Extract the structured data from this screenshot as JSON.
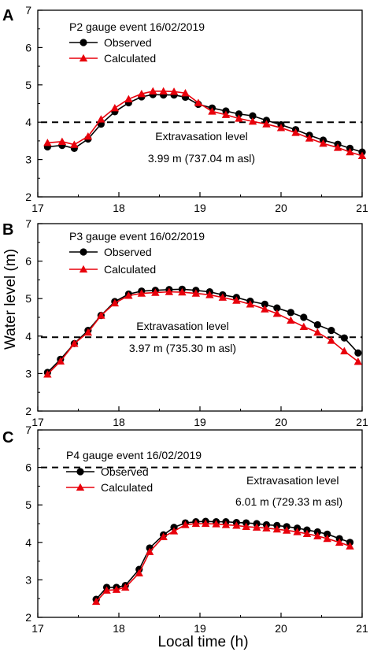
{
  "figure": {
    "ylabel": "Water level (m)",
    "xlabel": "Local time (h)"
  },
  "chart_data": [
    {
      "panel_label": "A",
      "type": "line",
      "title": "P2 gauge event 16/02/2019",
      "xlim": [
        17,
        21
      ],
      "ylim": [
        2,
        7
      ],
      "xticks": [
        "17",
        "18",
        "19",
        "20",
        "21"
      ],
      "yticks": [
        "2",
        "3",
        "4",
        "5",
        "6",
        "7"
      ],
      "threshold": {
        "value": 4.0,
        "label": "Extravasation level",
        "sublabel": "3.99 m (737.04 m asl)"
      },
      "series": [
        {
          "name": "Observed",
          "color": "#000000",
          "marker": "circle",
          "x": [
            17.12,
            17.3,
            17.45,
            17.62,
            17.78,
            17.95,
            18.12,
            18.28,
            18.42,
            18.55,
            18.68,
            18.82,
            18.98,
            19.15,
            19.32,
            19.48,
            19.65,
            19.82,
            20.0,
            20.18,
            20.35,
            20.52,
            20.7,
            20.85,
            21.0
          ],
          "y": [
            3.34,
            3.38,
            3.3,
            3.55,
            3.95,
            4.28,
            4.52,
            4.68,
            4.74,
            4.73,
            4.73,
            4.67,
            4.48,
            4.38,
            4.3,
            4.22,
            4.17,
            4.05,
            3.93,
            3.8,
            3.65,
            3.52,
            3.41,
            3.3,
            3.2
          ]
        },
        {
          "name": "Calculated",
          "color": "#e8000b",
          "marker": "triangle",
          "x": [
            17.12,
            17.3,
            17.45,
            17.62,
            17.78,
            17.95,
            18.12,
            18.28,
            18.42,
            18.55,
            18.68,
            18.82,
            18.98,
            19.15,
            19.32,
            19.48,
            19.65,
            19.82,
            20.0,
            20.18,
            20.35,
            20.52,
            20.7,
            20.85,
            21.0
          ],
          "y": [
            3.45,
            3.48,
            3.4,
            3.62,
            4.08,
            4.38,
            4.62,
            4.76,
            4.83,
            4.83,
            4.82,
            4.78,
            4.52,
            4.29,
            4.2,
            4.1,
            4.02,
            3.95,
            3.85,
            3.72,
            3.57,
            3.43,
            3.32,
            3.2,
            3.1
          ]
        }
      ]
    },
    {
      "panel_label": "B",
      "type": "line",
      "title": "P3 gauge event 16/02/2019",
      "xlim": [
        17,
        21
      ],
      "ylim": [
        2,
        7
      ],
      "xticks": [
        "17",
        "18",
        "19",
        "20",
        "21"
      ],
      "yticks": [
        "2",
        "3",
        "4",
        "5",
        "6",
        "7"
      ],
      "threshold": {
        "value": 3.97,
        "label": "Extravasation level",
        "sublabel": "3.97 m (735.30 m asl)"
      },
      "series": [
        {
          "name": "Observed",
          "color": "#000000",
          "marker": "circle",
          "x": [
            17.12,
            17.28,
            17.45,
            17.62,
            17.78,
            17.95,
            18.12,
            18.28,
            18.45,
            18.62,
            18.78,
            18.95,
            19.12,
            19.28,
            19.45,
            19.62,
            19.8,
            19.95,
            20.12,
            20.28,
            20.45,
            20.62,
            20.78,
            20.95
          ],
          "y": [
            3.03,
            3.38,
            3.8,
            4.15,
            4.55,
            4.92,
            5.12,
            5.2,
            5.22,
            5.24,
            5.25,
            5.22,
            5.18,
            5.1,
            5.03,
            4.93,
            4.85,
            4.75,
            4.63,
            4.5,
            4.3,
            4.15,
            3.95,
            3.55
          ]
        },
        {
          "name": "Calculated",
          "color": "#e8000b",
          "marker": "triangle",
          "x": [
            17.12,
            17.28,
            17.45,
            17.62,
            17.78,
            17.95,
            18.12,
            18.28,
            18.45,
            18.62,
            18.78,
            18.95,
            19.12,
            19.28,
            19.45,
            19.62,
            19.8,
            19.95,
            20.12,
            20.28,
            20.45,
            20.62,
            20.78,
            20.95
          ],
          "y": [
            2.98,
            3.33,
            3.8,
            4.1,
            4.55,
            4.88,
            5.08,
            5.14,
            5.16,
            5.18,
            5.17,
            5.14,
            5.1,
            5.03,
            4.95,
            4.85,
            4.72,
            4.6,
            4.42,
            4.25,
            4.1,
            3.88,
            3.6,
            3.32
          ]
        }
      ]
    },
    {
      "panel_label": "C",
      "type": "line",
      "title": "P4 gauge event 16/02/2019",
      "xlim": [
        17,
        21
      ],
      "ylim": [
        2,
        7
      ],
      "xticks": [
        "17",
        "18",
        "19",
        "20",
        "21"
      ],
      "yticks": [
        "2",
        "3",
        "4",
        "5",
        "6",
        "7"
      ],
      "threshold": {
        "value": 6.0,
        "label": "Extravasation level",
        "sublabel": "6.01 m (729.33 m asl)"
      },
      "series": [
        {
          "name": "Observed",
          "color": "#000000",
          "marker": "circle",
          "x": [
            17.72,
            17.85,
            17.97,
            18.08,
            18.25,
            18.38,
            18.55,
            18.68,
            18.82,
            18.95,
            19.07,
            19.2,
            19.32,
            19.45,
            19.57,
            19.7,
            19.82,
            19.95,
            20.07,
            20.2,
            20.32,
            20.45,
            20.57,
            20.72,
            20.85
          ],
          "y": [
            2.48,
            2.8,
            2.8,
            2.85,
            3.28,
            3.85,
            4.2,
            4.4,
            4.52,
            4.55,
            4.56,
            4.55,
            4.55,
            4.53,
            4.52,
            4.5,
            4.47,
            4.45,
            4.42,
            4.38,
            4.33,
            4.28,
            4.22,
            4.1,
            4.0
          ]
        },
        {
          "name": "Calculated",
          "color": "#e8000b",
          "marker": "triangle",
          "x": [
            17.72,
            17.85,
            17.97,
            18.08,
            18.25,
            18.38,
            18.55,
            18.68,
            18.82,
            18.95,
            19.07,
            19.2,
            19.32,
            19.45,
            19.57,
            19.7,
            19.82,
            19.95,
            20.07,
            20.2,
            20.32,
            20.45,
            20.57,
            20.72,
            20.85
          ],
          "y": [
            2.42,
            2.72,
            2.74,
            2.8,
            3.18,
            3.75,
            4.15,
            4.3,
            4.47,
            4.5,
            4.5,
            4.49,
            4.47,
            4.45,
            4.42,
            4.4,
            4.38,
            4.35,
            4.32,
            4.28,
            4.23,
            4.17,
            4.1,
            4.0,
            3.9
          ]
        }
      ]
    }
  ]
}
